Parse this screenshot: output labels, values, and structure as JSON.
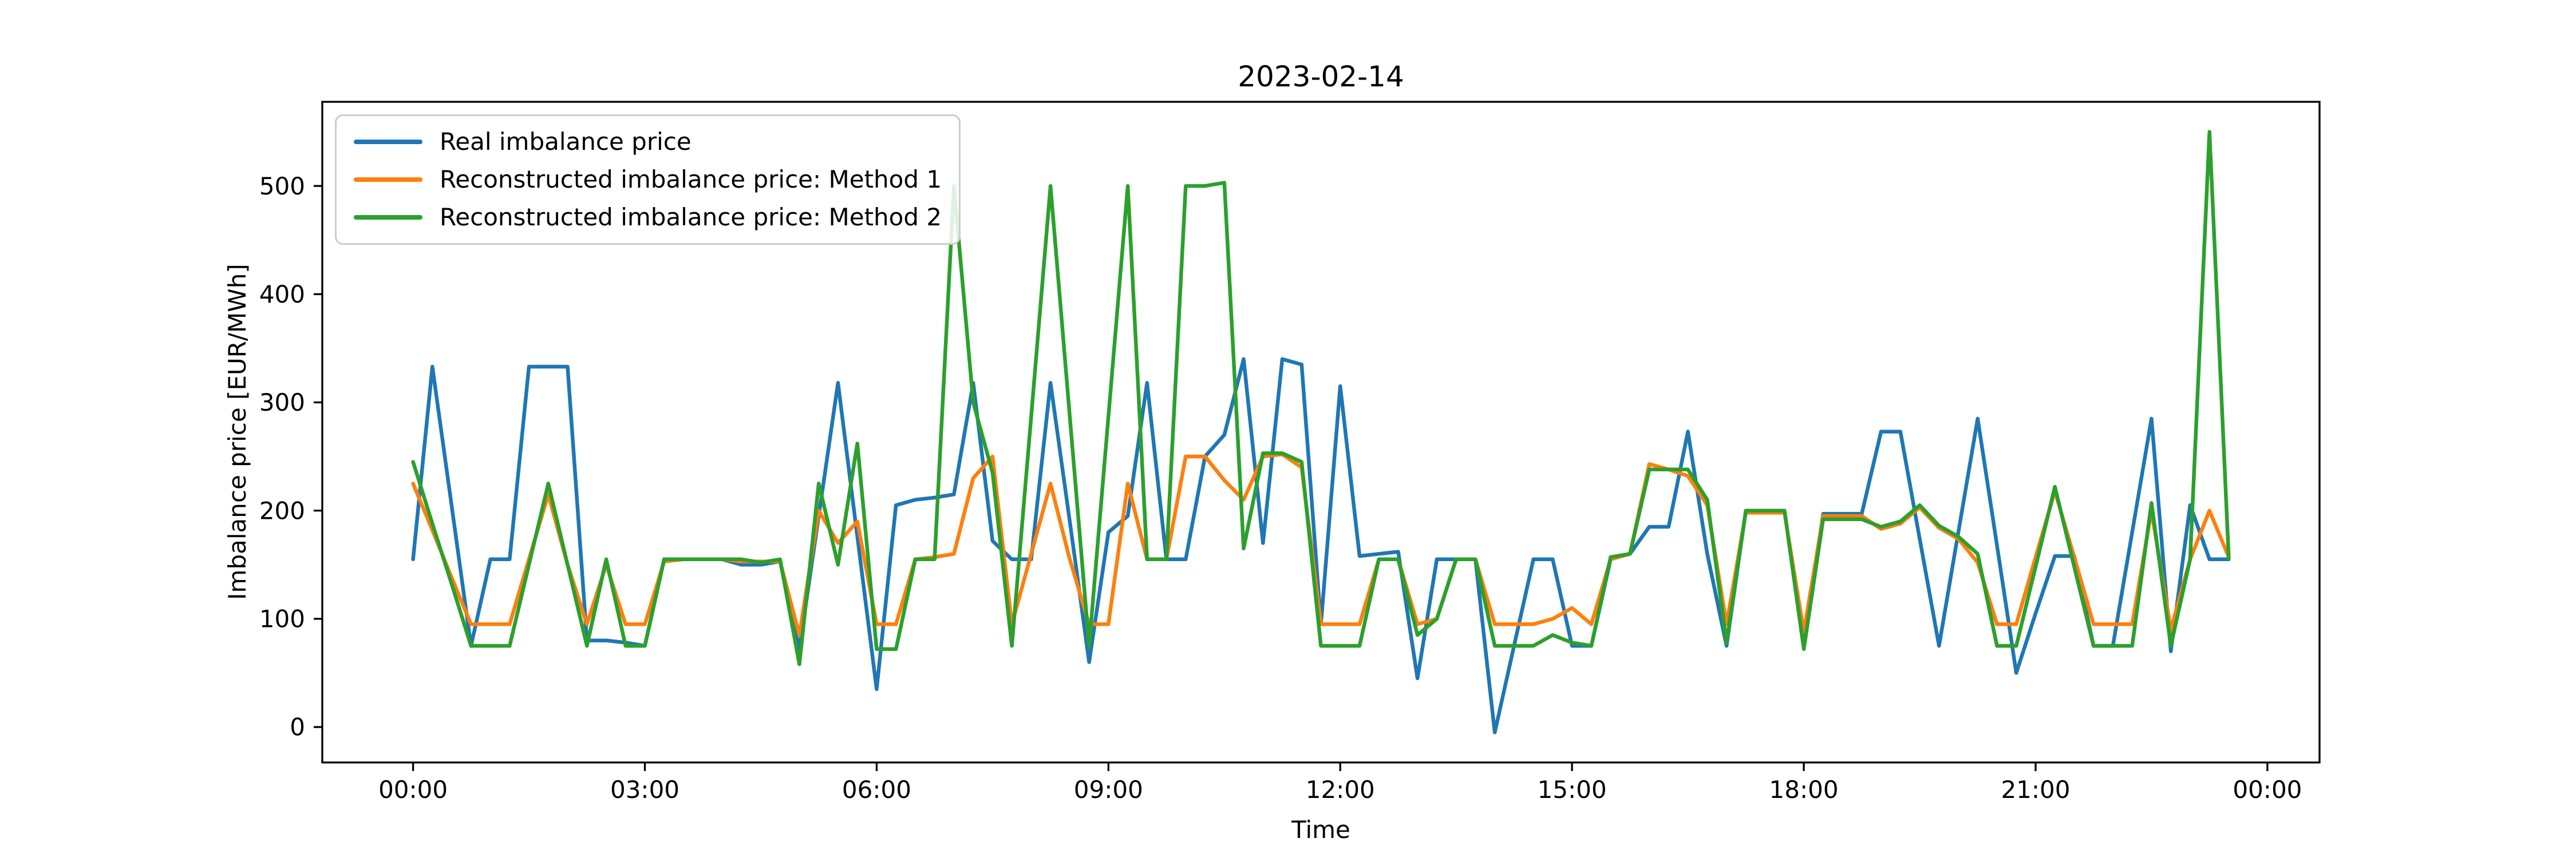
{
  "chart_data": {
    "type": "line",
    "title": "2023-02-14",
    "xlabel": "Time",
    "ylabel": "Imbalance price [EUR/MWh]",
    "grid": false,
    "legend_position": "upper left",
    "ylim": [
      -32.75,
      577.75
    ],
    "xlim_hours": [
      -1.175,
      24.675
    ],
    "y_ticks": [
      0,
      100,
      200,
      300,
      400,
      500
    ],
    "x_tick_hours": [
      0,
      3,
      6,
      9,
      12,
      15,
      18,
      21,
      24
    ],
    "x_tick_labels": [
      "00:00",
      "03:00",
      "06:00",
      "09:00",
      "12:00",
      "15:00",
      "18:00",
      "21:00",
      "00:00"
    ],
    "x_times": [
      "00:00",
      "00:15",
      "00:30",
      "00:45",
      "01:00",
      "01:15",
      "01:30",
      "01:45",
      "02:00",
      "02:15",
      "02:30",
      "02:45",
      "03:00",
      "03:15",
      "03:30",
      "03:45",
      "04:00",
      "04:15",
      "04:30",
      "04:45",
      "05:00",
      "05:15",
      "05:30",
      "05:45",
      "06:00",
      "06:15",
      "06:30",
      "06:45",
      "07:00",
      "07:15",
      "07:30",
      "07:45",
      "08:00",
      "08:15",
      "08:30",
      "08:45",
      "09:00",
      "09:15",
      "09:30",
      "09:45",
      "10:00",
      "10:15",
      "10:30",
      "10:45",
      "11:00",
      "11:15",
      "11:30",
      "11:45",
      "12:00",
      "12:15",
      "12:30",
      "12:45",
      "13:00",
      "13:15",
      "13:30",
      "13:45",
      "14:00",
      "14:15",
      "14:30",
      "14:45",
      "15:00",
      "15:15",
      "15:30",
      "15:45",
      "16:00",
      "16:15",
      "16:30",
      "16:45",
      "17:00",
      "17:15",
      "17:30",
      "17:45",
      "18:00",
      "18:15",
      "18:30",
      "18:45",
      "19:00",
      "19:15",
      "19:30",
      "19:45",
      "20:00",
      "20:15",
      "20:30",
      "20:45",
      "21:00",
      "21:15",
      "21:30",
      "21:45",
      "22:00",
      "22:15",
      "22:30",
      "22:45",
      "23:00",
      "23:15",
      "23:30"
    ],
    "series": [
      {
        "name": "Real imbalance price",
        "color": "#1f77b4",
        "values": [
          155,
          333,
          204,
          75,
          155,
          155,
          333,
          333,
          333,
          80,
          80,
          78,
          75,
          155,
          155,
          155,
          155,
          150,
          150,
          153,
          72,
          195,
          318,
          176,
          35,
          205,
          210,
          212,
          215,
          318,
          172,
          155,
          155,
          318,
          190,
          60,
          180,
          195,
          318,
          155,
          155,
          250,
          270,
          340,
          170,
          340,
          335,
          95,
          315,
          158,
          160,
          162,
          45,
          155,
          155,
          155,
          -5,
          75,
          155,
          155,
          75,
          75,
          155,
          160,
          185,
          185,
          273,
          160,
          75,
          200,
          200,
          200,
          75,
          197,
          197,
          197,
          273,
          273,
          174,
          75,
          180,
          285,
          168,
          50,
          105,
          158,
          158,
          75,
          75,
          180,
          285,
          70,
          205,
          155,
          155
        ]
      },
      {
        "name": "Reconstructed imbalance price: Method 1",
        "color": "#ff7f0e",
        "values": [
          225,
          182,
          138,
          95,
          95,
          95,
          155,
          215,
          150,
          95,
          150,
          95,
          95,
          153,
          155,
          155,
          155,
          153,
          153,
          153,
          85,
          200,
          170,
          190,
          95,
          95,
          155,
          157,
          160,
          230,
          250,
          95,
          160,
          225,
          155,
          95,
          95,
          225,
          155,
          155,
          250,
          250,
          228,
          210,
          250,
          252,
          240,
          95,
          95,
          95,
          155,
          155,
          95,
          100,
          155,
          155,
          95,
          95,
          95,
          100,
          110,
          95,
          155,
          160,
          243,
          238,
          232,
          205,
          95,
          198,
          198,
          198,
          88,
          195,
          195,
          195,
          183,
          188,
          203,
          184,
          174,
          152,
          95,
          95,
          157,
          218,
          157,
          95,
          95,
          95,
          200,
          90,
          155,
          200,
          157
        ]
      },
      {
        "name": "Reconstructed imbalance price: Method 2",
        "color": "#2ca02c",
        "values": [
          245,
          188,
          132,
          75,
          75,
          75,
          150,
          225,
          150,
          75,
          155,
          75,
          75,
          155,
          155,
          155,
          155,
          155,
          152,
          155,
          58,
          225,
          150,
          262,
          72,
          72,
          155,
          155,
          500,
          300,
          235,
          75,
          287,
          500,
          287,
          75,
          287,
          500,
          155,
          155,
          500,
          500,
          503,
          165,
          253,
          253,
          245,
          75,
          75,
          75,
          155,
          155,
          85,
          100,
          155,
          155,
          75,
          75,
          75,
          85,
          78,
          75,
          157,
          160,
          238,
          238,
          238,
          210,
          78,
          200,
          200,
          200,
          72,
          192,
          192,
          192,
          185,
          190,
          205,
          186,
          176,
          160,
          75,
          75,
          148,
          222,
          148,
          75,
          75,
          75,
          207,
          75,
          155,
          550,
          156
        ]
      }
    ]
  }
}
